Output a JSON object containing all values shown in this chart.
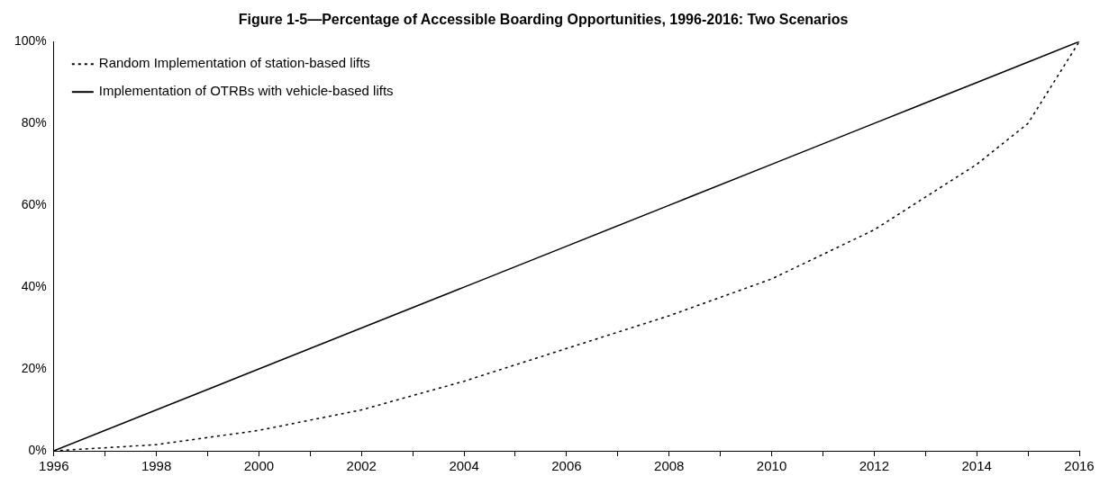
{
  "chart_data": {
    "type": "line",
    "title": "Figure 1-5—Percentage of Accessible Boarding Opportunities, 1996-2016: Two Scenarios",
    "x": [
      1996,
      1998,
      2000,
      2002,
      2004,
      2006,
      2008,
      2010,
      2012,
      2014,
      2015,
      2016
    ],
    "series": [
      {
        "name": "Random Implementation of station-based lifts",
        "color": "#000000",
        "line_style": "dotted",
        "values": [
          0,
          1.5,
          5,
          10,
          17,
          25,
          33,
          42,
          54,
          70,
          80,
          100
        ]
      },
      {
        "name": "Implementation of OTRBs with vehicle-based lifts",
        "color": "#000000",
        "line_style": "solid",
        "values": [
          0,
          10,
          20,
          30,
          40,
          50,
          60,
          70,
          80,
          90,
          95,
          100
        ]
      }
    ],
    "xlim": [
      1996,
      2016
    ],
    "xticks": [
      1996,
      {
        "value": 1997,
        "label": null
      },
      1998,
      {
        "value": 1999,
        "label": null
      },
      2000,
      {
        "value": 2001,
        "label": null
      },
      2002,
      {
        "value": 2003,
        "label": null
      },
      2004,
      {
        "value": 2005,
        "label": null
      },
      2006,
      {
        "value": 2007,
        "label": null
      },
      2008,
      {
        "value": 2009,
        "label": null
      },
      2010,
      {
        "value": 2011,
        "label": null
      },
      2012,
      {
        "value": 2013,
        "label": null
      },
      2014,
      {
        "value": 2015,
        "label": null
      },
      2016
    ],
    "ylim": [
      0,
      100
    ],
    "yticks": [
      {
        "value": 0,
        "label": "0%"
      },
      {
        "value": 20,
        "label": "20%"
      },
      {
        "value": 40,
        "label": "40%"
      },
      {
        "value": 60,
        "label": "60%"
      },
      {
        "value": 80,
        "label": "80%"
      },
      {
        "value": 100,
        "label": "100%"
      }
    ],
    "grid": false,
    "legend": "top left",
    "marker": "none"
  }
}
